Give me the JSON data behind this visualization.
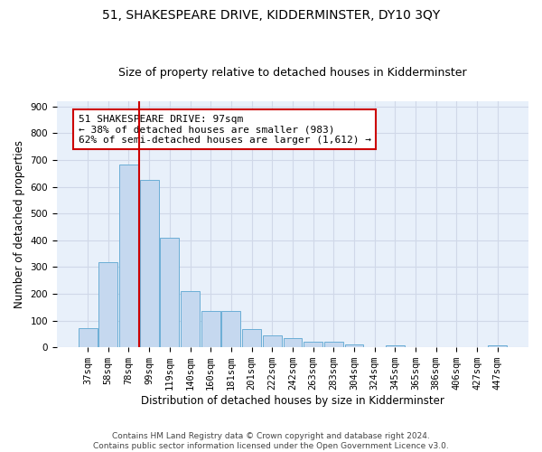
{
  "title": "51, SHAKESPEARE DRIVE, KIDDERMINSTER, DY10 3QY",
  "subtitle": "Size of property relative to detached houses in Kidderminster",
  "xlabel": "Distribution of detached houses by size in Kidderminster",
  "ylabel": "Number of detached properties",
  "footer_line1": "Contains HM Land Registry data © Crown copyright and database right 2024.",
  "footer_line2": "Contains public sector information licensed under the Open Government Licence v3.0.",
  "categories": [
    "37sqm",
    "58sqm",
    "78sqm",
    "99sqm",
    "119sqm",
    "140sqm",
    "160sqm",
    "181sqm",
    "201sqm",
    "222sqm",
    "242sqm",
    "263sqm",
    "283sqm",
    "304sqm",
    "324sqm",
    "345sqm",
    "365sqm",
    "386sqm",
    "406sqm",
    "427sqm",
    "447sqm"
  ],
  "values": [
    70,
    318,
    682,
    625,
    410,
    210,
    137,
    137,
    68,
    46,
    33,
    22,
    20,
    11,
    0,
    7,
    0,
    0,
    0,
    0,
    7
  ],
  "bar_color": "#c5d8ef",
  "bar_edge_color": "#6baed6",
  "vline_x_index": 2,
  "vline_color": "#cc0000",
  "annotation_title": "51 SHAKESPEARE DRIVE: 97sqm",
  "annotation_line1": "← 38% of detached houses are smaller (983)",
  "annotation_line2": "62% of semi-detached houses are larger (1,612) →",
  "annotation_box_color": "#ffffff",
  "annotation_box_edge": "#cc0000",
  "ylim": [
    0,
    920
  ],
  "yticks": [
    0,
    100,
    200,
    300,
    400,
    500,
    600,
    700,
    800,
    900
  ],
  "plot_bg_color": "#e8f0fa",
  "background_color": "#ffffff",
  "grid_color": "#d0d8e8",
  "title_fontsize": 10,
  "subtitle_fontsize": 9,
  "axis_label_fontsize": 8.5,
  "tick_fontsize": 7.5,
  "annotation_fontsize": 8,
  "footer_fontsize": 6.5
}
